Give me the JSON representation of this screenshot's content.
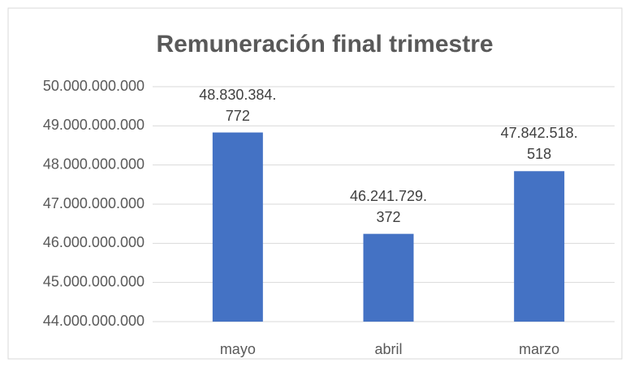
{
  "chart_data": {
    "type": "bar",
    "title": "Remuneración final trimestre",
    "categories": [
      "mayo",
      "abril",
      "marzo"
    ],
    "values": [
      48830384772,
      46241729372,
      47842518518
    ],
    "value_labels": [
      "48.830.384.772",
      "46.241.729.372",
      "47.842.518.518"
    ],
    "color": "#4472c4",
    "ylim": [
      44000000000,
      50000000000
    ],
    "yticks": [
      {
        "value": 44000000000,
        "label": "44.000.000.000"
      },
      {
        "value": 45000000000,
        "label": "45.000.000.000"
      },
      {
        "value": 46000000000,
        "label": "46.000.000.000"
      },
      {
        "value": 47000000000,
        "label": "47.000.000.000"
      },
      {
        "value": 48000000000,
        "label": "48.000.000.000"
      },
      {
        "value": 49000000000,
        "label": "49.000.000.000"
      },
      {
        "value": 50000000000,
        "label": "50.000.000.000"
      }
    ],
    "grid": true
  }
}
